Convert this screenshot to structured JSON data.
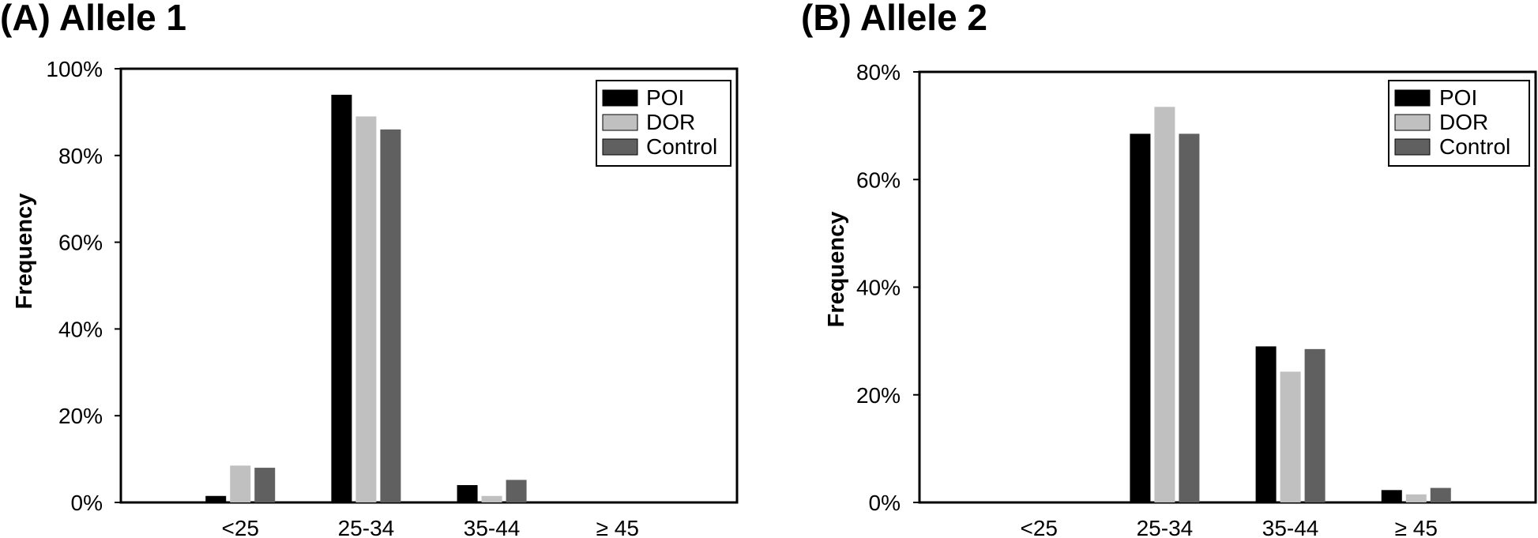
{
  "chart_data": [
    {
      "type": "bar",
      "title": "(A) Allele 1",
      "ylabel": "Frequency",
      "xlabel": "",
      "categories": [
        "<25",
        "25-34",
        "35-44",
        "≥ 45"
      ],
      "ylim": [
        0,
        100
      ],
      "yticks": [
        "0%",
        "20%",
        "40%",
        "60%",
        "80%",
        "100%"
      ],
      "grid": false,
      "legend_position": "top-right",
      "series": [
        {
          "name": "POI",
          "color": "#000000",
          "values": [
            1.5,
            94,
            4,
            0
          ]
        },
        {
          "name": "DOR",
          "color": "#c0c0c0",
          "values": [
            8.5,
            89,
            1.5,
            0
          ]
        },
        {
          "name": "Control",
          "color": "#606060",
          "values": [
            8,
            86,
            5.2,
            0
          ]
        }
      ]
    },
    {
      "type": "bar",
      "title": "(B) Allele 2",
      "ylabel": "Frequency",
      "xlabel": "",
      "categories": [
        "<25",
        "25-34",
        "35-44",
        "≥ 45"
      ],
      "ylim": [
        0,
        80
      ],
      "yticks": [
        "0%",
        "20%",
        "40%",
        "60%",
        "80%"
      ],
      "grid": false,
      "legend_position": "top-right",
      "series": [
        {
          "name": "POI",
          "color": "#000000",
          "values": [
            0,
            68.5,
            29,
            2.3
          ]
        },
        {
          "name": "DOR",
          "color": "#c0c0c0",
          "values": [
            0,
            73.5,
            24.3,
            1.5
          ]
        },
        {
          "name": "Control",
          "color": "#606060",
          "values": [
            0,
            68.5,
            28.5,
            2.7
          ]
        }
      ]
    }
  ]
}
